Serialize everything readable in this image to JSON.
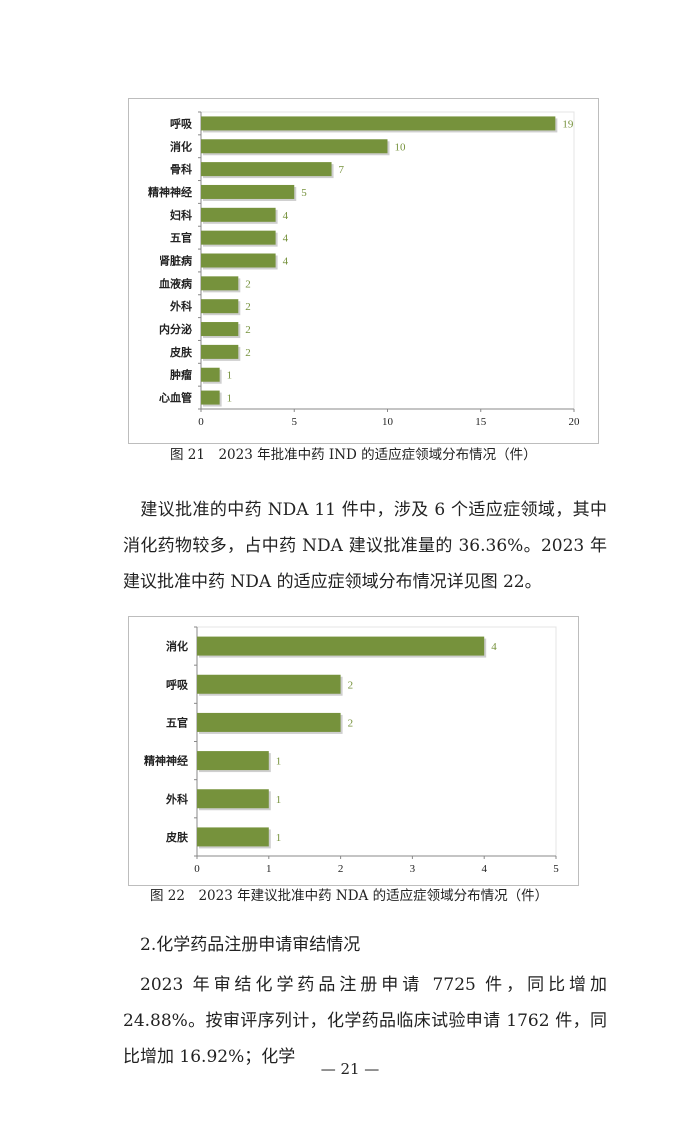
{
  "chart_data": [
    {
      "type": "bar",
      "orientation": "horizontal",
      "title": "图 21　2023 年批准中药 IND 的适应症领域分布情况（件）",
      "categories": [
        "呼吸",
        "消化",
        "骨科",
        "精神神经",
        "妇科",
        "五官",
        "肾脏病",
        "血液病",
        "外科",
        "内分泌",
        "皮肤",
        "肿瘤",
        "心血管"
      ],
      "values": [
        19,
        10,
        7,
        5,
        4,
        4,
        4,
        2,
        2,
        2,
        2,
        1,
        1
      ],
      "xlim": [
        0,
        20
      ],
      "xticks": [
        0,
        5,
        10,
        15,
        20
      ],
      "grid": false,
      "bar_color": "#76923c",
      "label_color": "#76923c"
    },
    {
      "type": "bar",
      "orientation": "horizontal",
      "title": "图 22　2023 年建议批准中药 NDA 的适应症领域分布情况（件）",
      "categories": [
        "消化",
        "呼吸",
        "五官",
        "精神神经",
        "外科",
        "皮肤"
      ],
      "values": [
        4,
        2,
        2,
        1,
        1,
        1
      ],
      "xlim": [
        0,
        5
      ],
      "xticks": [
        0,
        1,
        2,
        3,
        4,
        5
      ],
      "grid": false,
      "bar_color": "#76923c",
      "label_color": "#76923c"
    }
  ],
  "para1": "建议批准的中药 NDA 11 件中，涉及 6 个适应症领域，其中消化药物较多，占中药 NDA 建议批准量的 36.36%。2023 年建议批准中药 NDA 的适应症领域分布情况详见图 22。",
  "heading": "2.化学药品注册申请审结情况",
  "para2": "2023 年审结化学药品注册申请 7725 件，同比增加 24.88%。按审评序列计，化学药品临床试验申请 1762 件，同比增加 16.92%；化学",
  "page_number": "— 21 —"
}
